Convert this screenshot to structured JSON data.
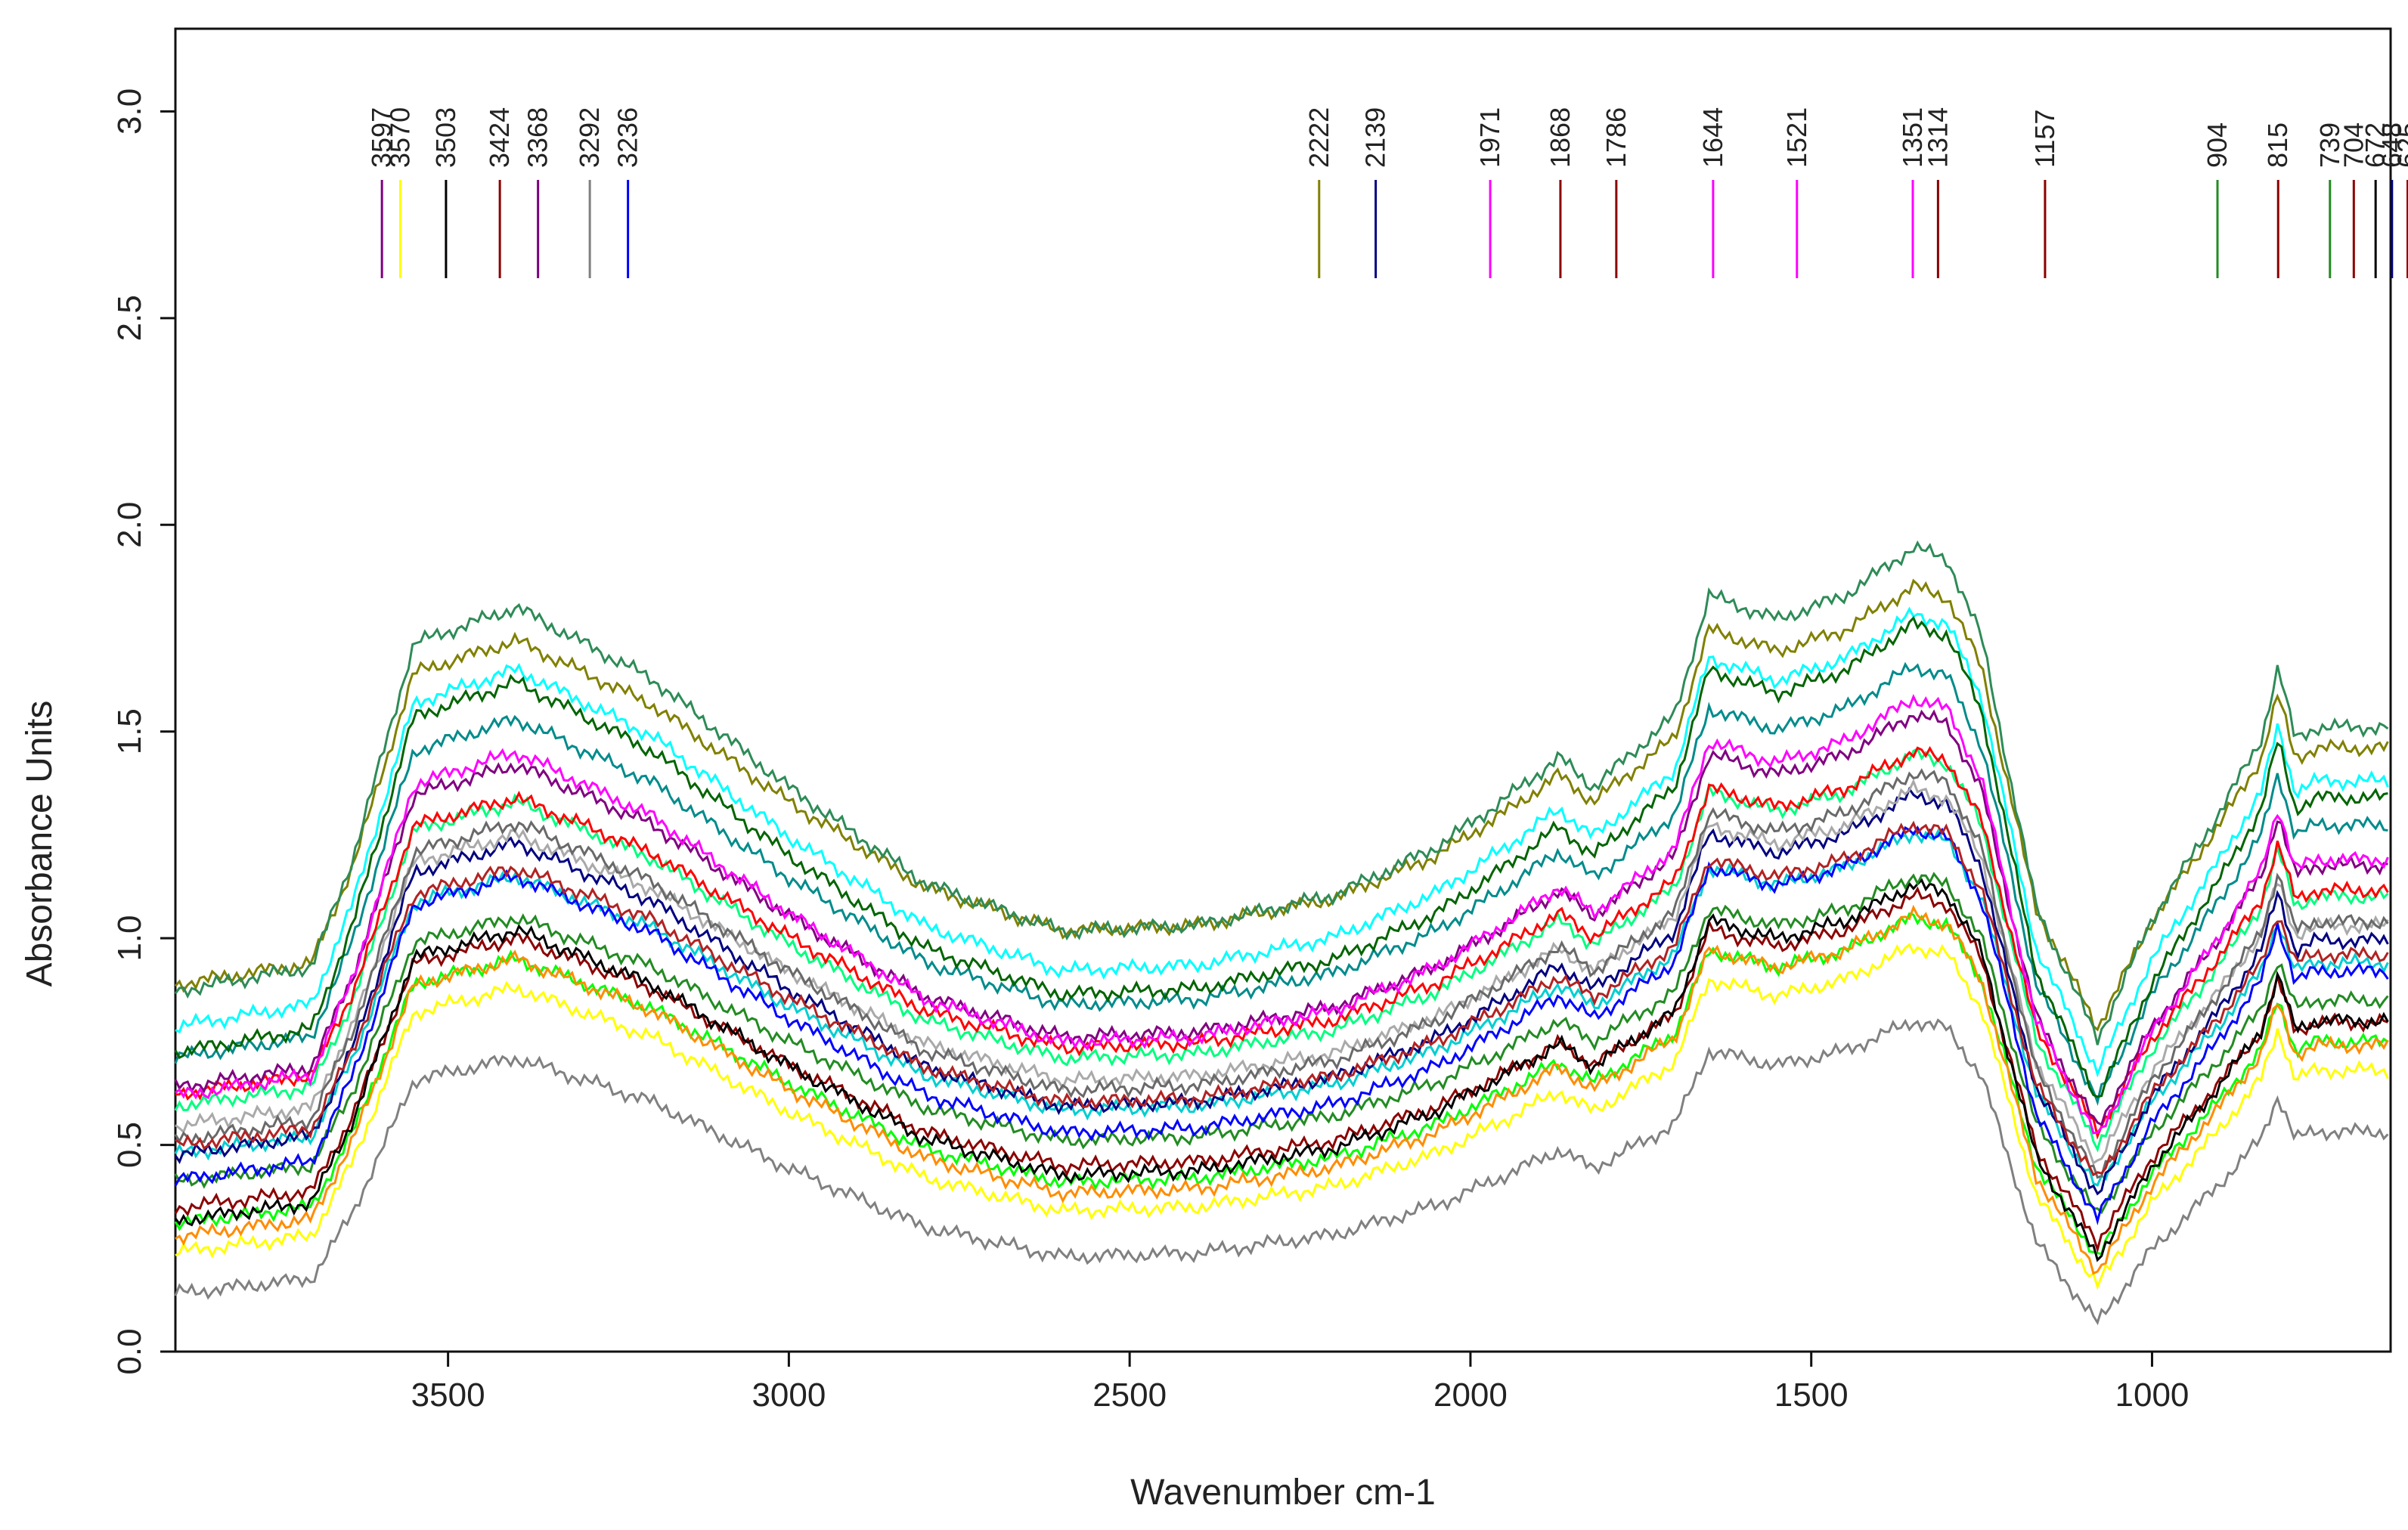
{
  "chart_data": {
    "type": "line",
    "title": "",
    "xlabel": "Wavenumber cm-1",
    "ylabel": "Absorbance Units",
    "xlim": [
      3900,
      650
    ],
    "ylim": [
      0.0,
      3.2
    ],
    "xticks": [
      3500,
      3000,
      2500,
      2000,
      1500,
      1000
    ],
    "xtick_labels": [
      "3500",
      "3000",
      "2500",
      "2000",
      "1500",
      "1000"
    ],
    "yticks": [
      0.0,
      0.5,
      1.0,
      1.5,
      2.0,
      2.5,
      3.0
    ],
    "ytick_labels": [
      "0.0",
      "0.5",
      "1.0",
      "1.5",
      "2.0",
      "2.5",
      "3.0"
    ],
    "grid": false,
    "legend": "none",
    "x_knots": [
      3900,
      3700,
      3640,
      3550,
      3400,
      3200,
      3000,
      2800,
      2600,
      2400,
      2200,
      2050,
      1950,
      1870,
      1820,
      1700,
      1650,
      1550,
      1450,
      1350,
      1300,
      1250,
      1170,
      1080,
      1000,
      900,
      840,
      815,
      790,
      760,
      700,
      650
    ],
    "base_shape": [
      0.36,
      0.4,
      0.58,
      0.94,
      1.0,
      0.88,
      0.7,
      0.54,
      0.46,
      0.47,
      0.52,
      0.6,
      0.68,
      0.75,
      0.7,
      0.82,
      1.02,
      0.98,
      1.02,
      1.1,
      1.08,
      0.95,
      0.5,
      0.28,
      0.48,
      0.66,
      0.78,
      0.9,
      0.78,
      0.8,
      0.8,
      0.8
    ],
    "series": [
      {
        "name": "s01",
        "color": "#808080",
        "scale": 0.89,
        "offset": -0.18
      },
      {
        "name": "s02",
        "color": "#ffff00",
        "scale": 1.0,
        "offset": -0.12
      },
      {
        "name": "s03",
        "color": "#00ff00",
        "scale": 1.0,
        "offset": -0.05
      },
      {
        "name": "s04",
        "color": "#ff8c00",
        "scale": 1.05,
        "offset": -0.1
      },
      {
        "name": "s05",
        "color": "#8b0000",
        "scale": 1.02,
        "offset": -0.02
      },
      {
        "name": "s06",
        "color": "#000000",
        "scale": 1.1,
        "offset": -0.08
      },
      {
        "name": "s07",
        "color": "#228b22",
        "scale": 1.0,
        "offset": 0.05
      },
      {
        "name": "s08",
        "color": "#00ced1",
        "scale": 1.05,
        "offset": 0.1
      },
      {
        "name": "s09",
        "color": "#0000ff",
        "scale": 1.15,
        "offset": 0.0
      },
      {
        "name": "s10",
        "color": "#000080",
        "scale": 1.18,
        "offset": 0.05
      },
      {
        "name": "s11",
        "color": "#a9a9a9",
        "scale": 1.1,
        "offset": 0.15
      },
      {
        "name": "s12",
        "color": "#00ff7f",
        "scale": 1.15,
        "offset": 0.18
      },
      {
        "name": "s13",
        "color": "#ff0000",
        "scale": 1.12,
        "offset": 0.22
      },
      {
        "name": "s14",
        "color": "#800080",
        "scale": 1.22,
        "offset": 0.2
      },
      {
        "name": "s15",
        "color": "#ff00ff",
        "scale": 1.3,
        "offset": 0.15
      },
      {
        "name": "s16",
        "color": "#008b8b",
        "scale": 1.28,
        "offset": 0.25
      },
      {
        "name": "s17",
        "color": "#00ffff",
        "scale": 1.35,
        "offset": 0.3
      },
      {
        "name": "s18",
        "color": "#006400",
        "scale": 1.4,
        "offset": 0.22
      },
      {
        "name": "s19",
        "color": "#808000",
        "scale": 1.3,
        "offset": 0.42
      },
      {
        "name": "s20",
        "color": "#2e8b57",
        "scale": 1.45,
        "offset": 0.35
      },
      {
        "name": "s21",
        "color": "#696969",
        "scale": 1.2,
        "offset": 0.08
      },
      {
        "name": "s22",
        "color": "#b22222",
        "scale": 1.05,
        "offset": 0.12
      }
    ],
    "annotations": [
      {
        "label": "3597",
        "x": 3597,
        "color": "#800080"
      },
      {
        "label": "3570",
        "x": 3570,
        "color": "#ffff00"
      },
      {
        "label": "3503",
        "x": 3503,
        "color": "#000000"
      },
      {
        "label": "3424",
        "x": 3424,
        "color": "#8b0000"
      },
      {
        "label": "3368",
        "x": 3368,
        "color": "#800080"
      },
      {
        "label": "3292",
        "x": 3292,
        "color": "#808080"
      },
      {
        "label": "3236",
        "x": 3236,
        "color": "#0000ff"
      },
      {
        "label": "2222",
        "x": 2222,
        "color": "#808000"
      },
      {
        "label": "2139",
        "x": 2139,
        "color": "#000080"
      },
      {
        "label": "1971",
        "x": 1971,
        "color": "#ff00ff"
      },
      {
        "label": "1868",
        "x": 1868,
        "color": "#8b0000"
      },
      {
        "label": "1786",
        "x": 1786,
        "color": "#8b0000"
      },
      {
        "label": "1644",
        "x": 1644,
        "color": "#ff00ff"
      },
      {
        "label": "1521",
        "x": 1521,
        "color": "#ff00ff"
      },
      {
        "label": "1351",
        "x": 1351,
        "color": "#ff00ff"
      },
      {
        "label": "1314",
        "x": 1314,
        "color": "#8b0000"
      },
      {
        "label": "1157",
        "x": 1157,
        "color": "#8b0000"
      },
      {
        "label": "904",
        "x": 904,
        "color": "#228b22"
      },
      {
        "label": "815",
        "x": 815,
        "color": "#8b0000"
      },
      {
        "label": "739",
        "x": 739,
        "color": "#228b22"
      },
      {
        "label": "704",
        "x": 704,
        "color": "#8b0000"
      },
      {
        "label": "672",
        "x": 672,
        "color": "#000000"
      },
      {
        "label": "648",
        "x": 648,
        "color": "#000080"
      },
      {
        "label": "625",
        "x": 625,
        "color": "#8b0000"
      }
    ]
  }
}
